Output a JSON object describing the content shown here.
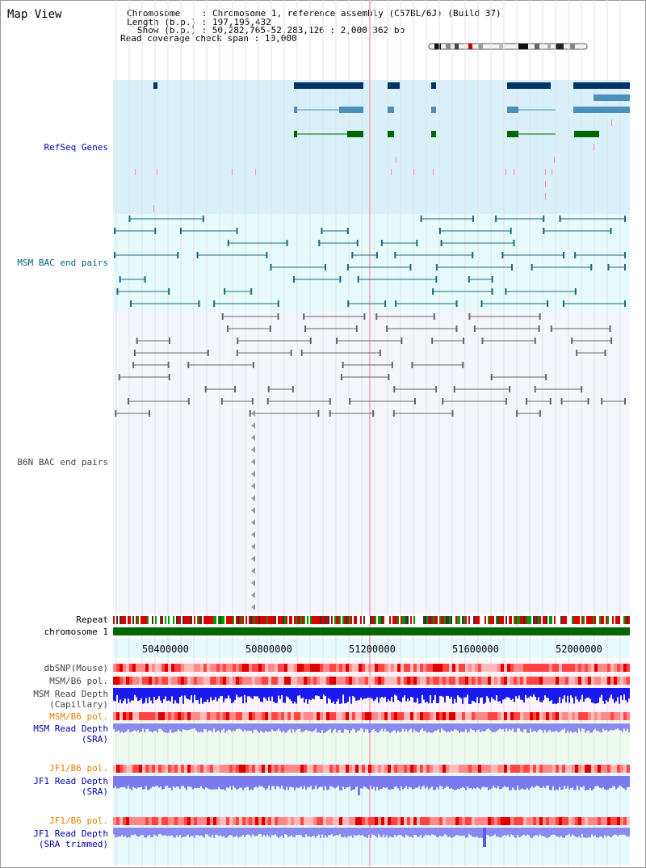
{
  "page": {
    "title": "Map View"
  },
  "info": {
    "chromosome_label": "Chromosome",
    "chromosome_value": "Chromosome 1, reference assembly (C57BL/6J) (Build 37)",
    "length_label": "Length (b.p.)",
    "length_value": "197,195,432",
    "show_label": "Show (b.p.)",
    "show_value": "50,282,765-52,283,126 : 2,000,362 bp",
    "coverage_label": "Read coverage check span",
    "coverage_value": "10,000"
  },
  "tracks": {
    "refseq": "RefSeq Genes",
    "msm_bac": "MSM BAC end pairs",
    "b6n_bac": "B6N BAC end pairs",
    "repeat": "Repeat",
    "chromosome": "chromosome 1",
    "dbsnp": "dbSNP(Mouse)",
    "msm_pol_1": "MSM/B6 pol.",
    "msm_depth_cap_1": "MSM Read Depth",
    "msm_depth_cap_2": "(Capillary)",
    "msm_pol_2": "MSM/B6 pol.",
    "msm_depth_sra_1": "MSM Read Depth",
    "msm_depth_sra_2": "(SRA)",
    "jf1_pol_1": "JF1/B6 pol.",
    "jf1_depth_1": "JF1 Read Depth",
    "jf1_depth_2": "(SRA)",
    "jf1_pol_2": "JF1/B6 pol.",
    "jf1_depth_trim_1": "JF1 Read Depth",
    "jf1_depth_trim_2": "(SRA trimmed)"
  },
  "axis": {
    "ticks": [
      "50400000",
      "50800000",
      "51200000",
      "51600000",
      "52000000"
    ]
  },
  "colors": {
    "refseq_bg": "#d9f0fa",
    "msm_bg": "#e6f9fb",
    "b6n_bg": "#f4f6fb",
    "gene_navy": "#003366",
    "gene_steel": "#4a90b8",
    "gene_green": "#006600",
    "bac_teal": "#1a6a80",
    "bac_grey": "#666666",
    "snp_red": "#ee2222",
    "depth_blue": "#1a1aee",
    "depth_light": "#7a7aee",
    "chrom_green": "#006600"
  }
}
